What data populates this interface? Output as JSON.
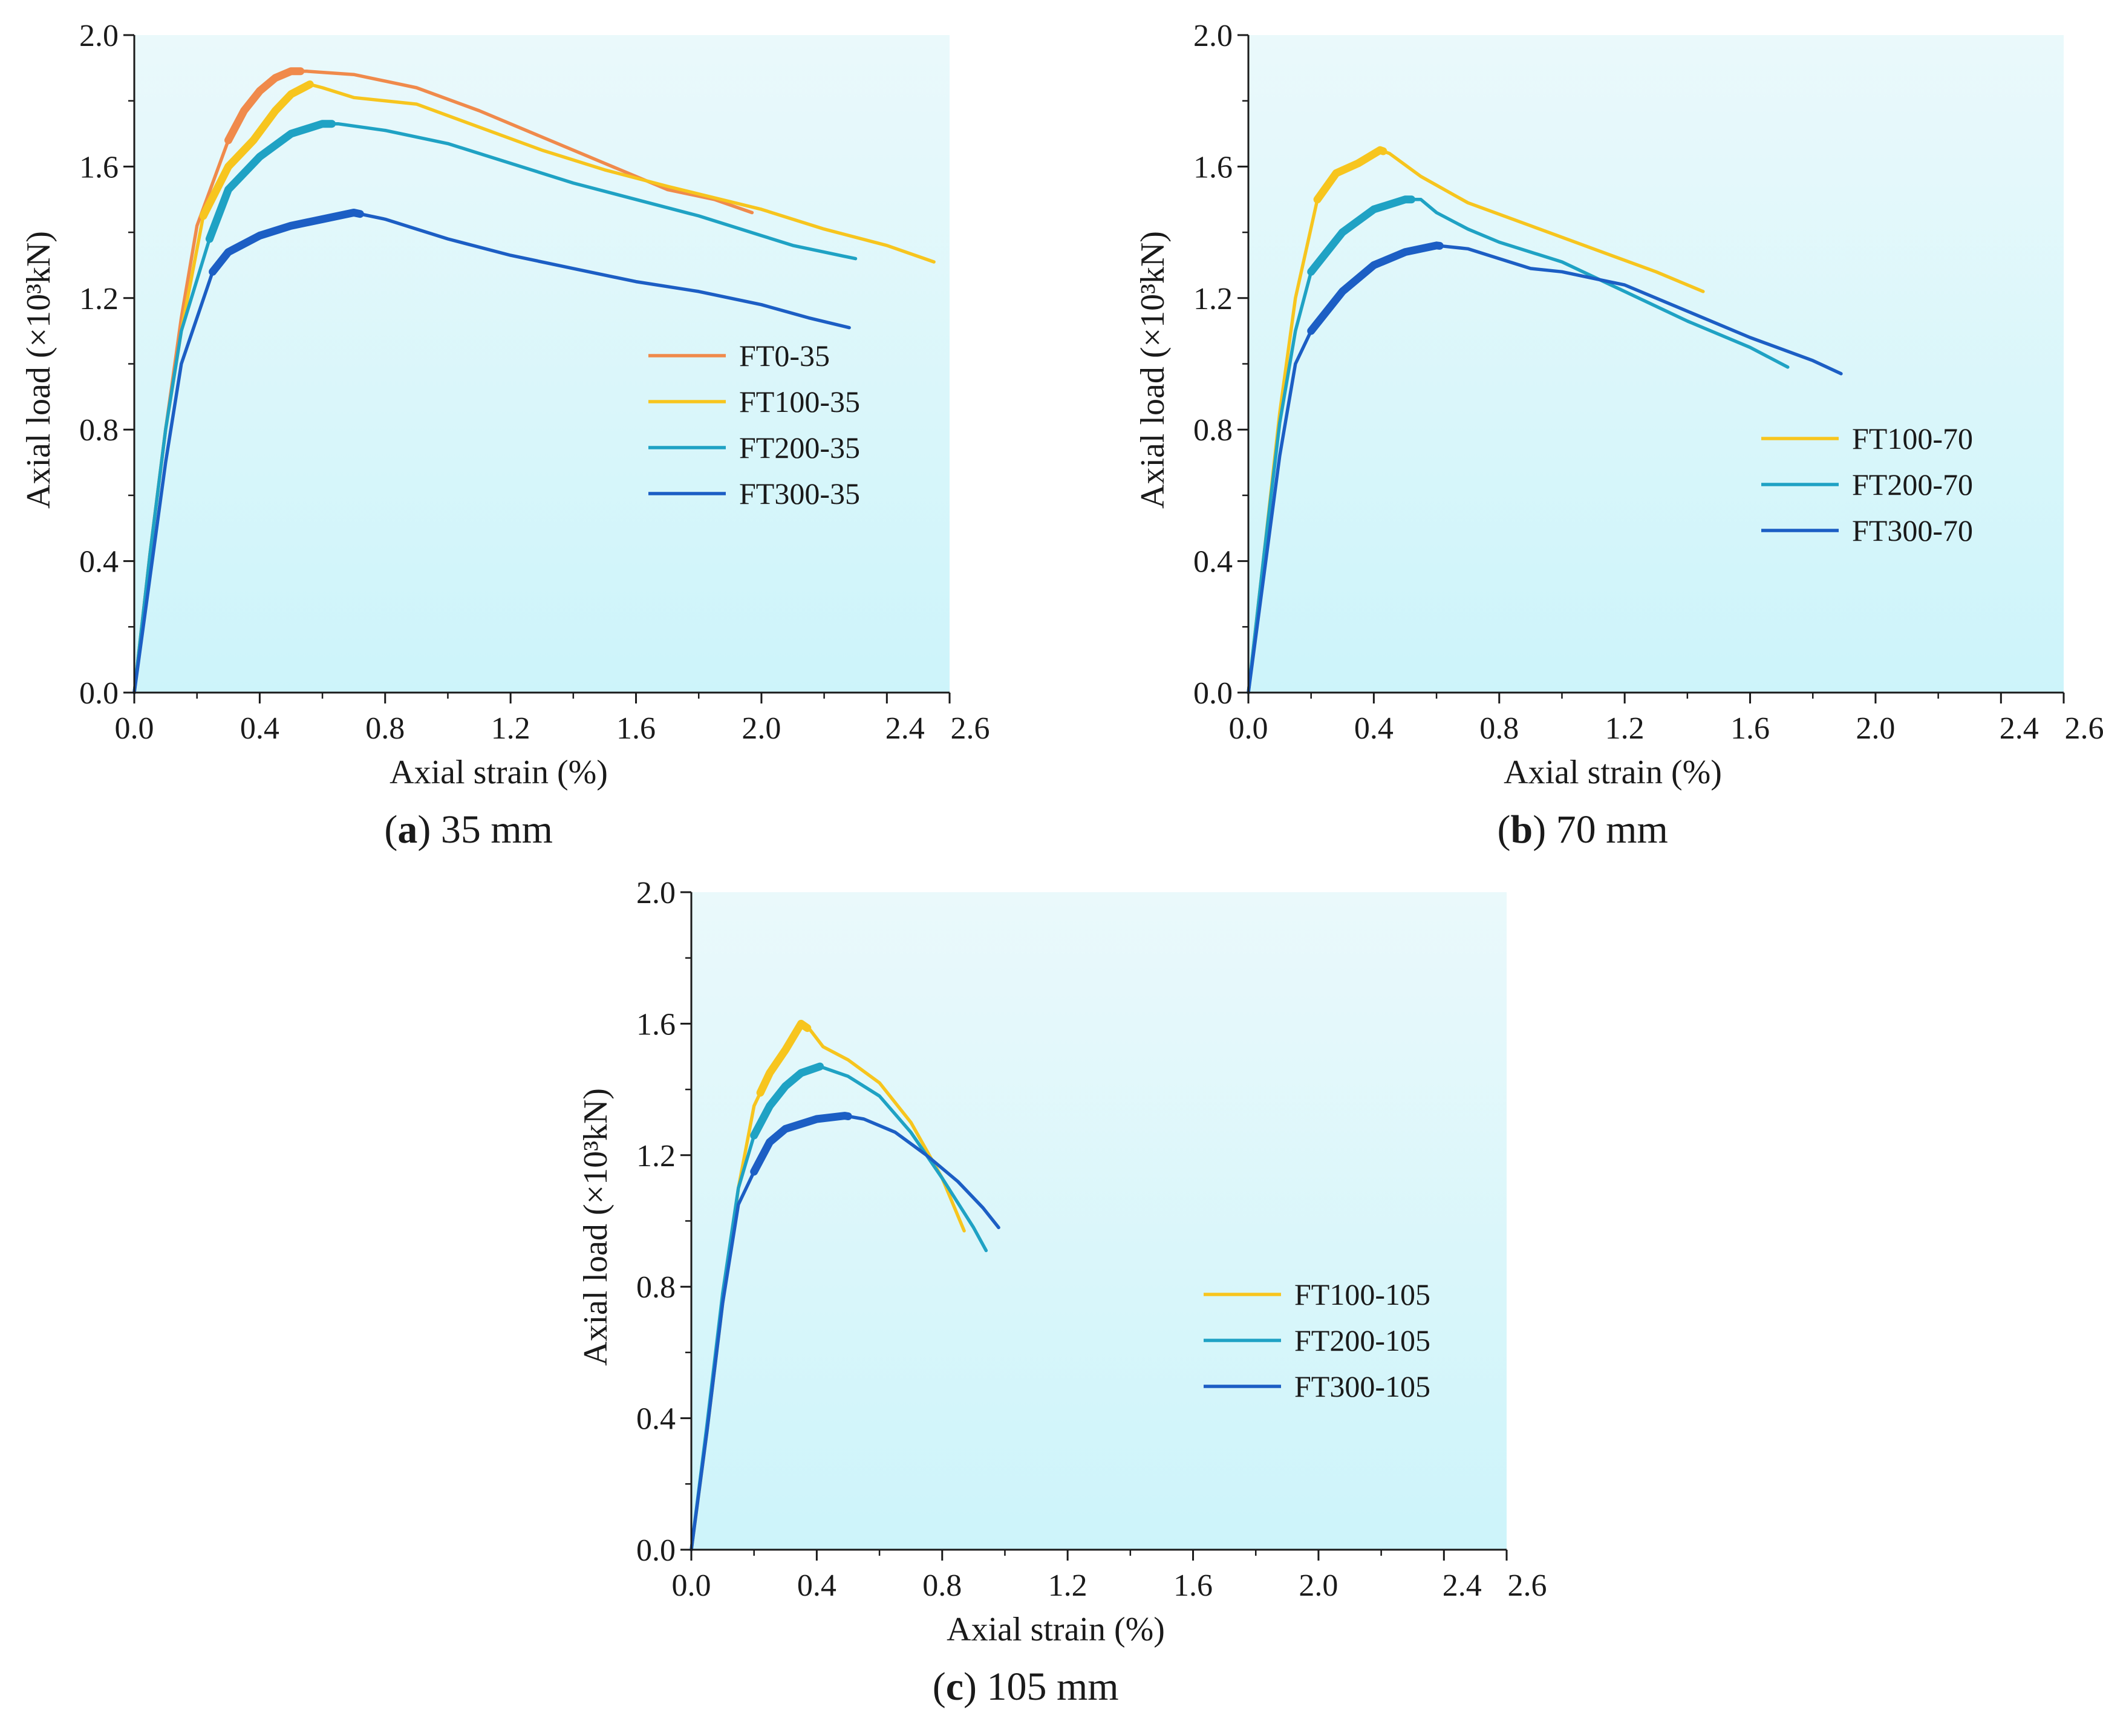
{
  "colors": {
    "FT0": "#f08a4b",
    "FT100": "#f7c51e",
    "FT200": "#1fa2c4",
    "FT300": "#1c5ec4",
    "plot_bg_top": "#eaf9fb",
    "plot_bg_bottom": "#cdf4fa"
  },
  "chart_data": [
    {
      "type": "line",
      "caption": {
        "letter": "a",
        "text": " 35 mm",
        "open": "(",
        "close": ")"
      },
      "xlabel": "Axial strain (%)",
      "ylabel": "Axial load (×10³kN)",
      "xlim": [
        0,
        2.6
      ],
      "ylim": [
        0,
        2.0
      ],
      "xticks": [
        "0.0",
        "0.4",
        "0.8",
        "1.2",
        "1.6",
        "2.0",
        "2.4",
        "2.6"
      ],
      "yticks": [
        "0.0",
        "0.4",
        "0.8",
        "1.2",
        "1.6",
        "2.0"
      ],
      "legend_position": "center-right",
      "series": [
        {
          "name": "FT0-35",
          "color_key": "FT0",
          "points": [
            [
              0,
              0
            ],
            [
              0.05,
              0.42
            ],
            [
              0.1,
              0.8
            ],
            [
              0.15,
              1.14
            ],
            [
              0.2,
              1.42
            ],
            [
              0.25,
              1.55
            ],
            [
              0.3,
              1.68
            ],
            [
              0.35,
              1.77
            ],
            [
              0.4,
              1.83
            ],
            [
              0.45,
              1.87
            ],
            [
              0.5,
              1.89
            ],
            [
              0.55,
              1.89
            ],
            [
              0.7,
              1.88
            ],
            [
              0.9,
              1.84
            ],
            [
              1.1,
              1.77
            ],
            [
              1.3,
              1.69
            ],
            [
              1.5,
              1.61
            ],
            [
              1.7,
              1.53
            ],
            [
              1.85,
              1.5
            ],
            [
              1.97,
              1.46
            ]
          ],
          "thick_x": [
            0.3,
            0.53
          ]
        },
        {
          "name": "FT100-35",
          "color_key": "FT100",
          "points": [
            [
              0,
              0
            ],
            [
              0.05,
              0.42
            ],
            [
              0.1,
              0.8
            ],
            [
              0.15,
              1.1
            ],
            [
              0.22,
              1.45
            ],
            [
              0.3,
              1.6
            ],
            [
              0.38,
              1.68
            ],
            [
              0.45,
              1.77
            ],
            [
              0.5,
              1.82
            ],
            [
              0.56,
              1.85
            ],
            [
              0.6,
              1.84
            ],
            [
              0.7,
              1.81
            ],
            [
              0.9,
              1.79
            ],
            [
              1.1,
              1.72
            ],
            [
              1.3,
              1.65
            ],
            [
              1.5,
              1.59
            ],
            [
              1.7,
              1.54
            ],
            [
              2.0,
              1.47
            ],
            [
              2.2,
              1.41
            ],
            [
              2.4,
              1.36
            ],
            [
              2.55,
              1.31
            ]
          ],
          "thick_x": [
            0.22,
            0.56
          ]
        },
        {
          "name": "FT200-35",
          "color_key": "FT200",
          "points": [
            [
              0,
              0
            ],
            [
              0.05,
              0.42
            ],
            [
              0.1,
              0.8
            ],
            [
              0.15,
              1.1
            ],
            [
              0.24,
              1.38
            ],
            [
              0.3,
              1.53
            ],
            [
              0.4,
              1.63
            ],
            [
              0.5,
              1.7
            ],
            [
              0.6,
              1.73
            ],
            [
              0.65,
              1.73
            ],
            [
              0.8,
              1.71
            ],
            [
              1.0,
              1.67
            ],
            [
              1.2,
              1.61
            ],
            [
              1.4,
              1.55
            ],
            [
              1.6,
              1.5
            ],
            [
              1.8,
              1.45
            ],
            [
              2.0,
              1.39
            ],
            [
              2.1,
              1.36
            ],
            [
              2.2,
              1.34
            ],
            [
              2.3,
              1.32
            ]
          ],
          "thick_x": [
            0.24,
            0.63
          ]
        },
        {
          "name": "FT300-35",
          "color_key": "FT300",
          "points": [
            [
              0,
              0
            ],
            [
              0.05,
              0.35
            ],
            [
              0.1,
              0.7
            ],
            [
              0.15,
              1.0
            ],
            [
              0.25,
              1.28
            ],
            [
              0.3,
              1.34
            ],
            [
              0.4,
              1.39
            ],
            [
              0.5,
              1.42
            ],
            [
              0.6,
              1.44
            ],
            [
              0.7,
              1.46
            ],
            [
              0.8,
              1.44
            ],
            [
              1.0,
              1.38
            ],
            [
              1.2,
              1.33
            ],
            [
              1.4,
              1.29
            ],
            [
              1.6,
              1.25
            ],
            [
              1.8,
              1.22
            ],
            [
              2.0,
              1.18
            ],
            [
              2.15,
              1.14
            ],
            [
              2.28,
              1.11
            ]
          ],
          "thick_x": [
            0.25,
            0.72
          ]
        }
      ]
    },
    {
      "type": "line",
      "caption": {
        "letter": "b",
        "text": " 70 mm",
        "open": "(",
        "close": ")"
      },
      "xlabel": "Axial strain (%)",
      "ylabel": "Axial load (×10³kN)",
      "xlim": [
        0,
        2.6
      ],
      "ylim": [
        0,
        2.0
      ],
      "xticks": [
        "0.0",
        "0.4",
        "0.8",
        "1.2",
        "1.6",
        "2.0",
        "2.4",
        "2.6"
      ],
      "yticks": [
        "0.0",
        "0.4",
        "0.8",
        "1.2",
        "1.6",
        "2.0"
      ],
      "legend_position": "center-right",
      "series": [
        {
          "name": "FT100-70",
          "color_key": "FT100",
          "points": [
            [
              0,
              0
            ],
            [
              0.05,
              0.42
            ],
            [
              0.1,
              0.85
            ],
            [
              0.15,
              1.2
            ],
            [
              0.22,
              1.5
            ],
            [
              0.28,
              1.58
            ],
            [
              0.35,
              1.61
            ],
            [
              0.42,
              1.65
            ],
            [
              0.45,
              1.64
            ],
            [
              0.55,
              1.57
            ],
            [
              0.7,
              1.49
            ],
            [
              0.9,
              1.42
            ],
            [
              1.1,
              1.35
            ],
            [
              1.3,
              1.28
            ],
            [
              1.45,
              1.22
            ]
          ],
          "thick_x": [
            0.22,
            0.43
          ]
        },
        {
          "name": "FT200-70",
          "color_key": "FT200",
          "points": [
            [
              0,
              0
            ],
            [
              0.05,
              0.42
            ],
            [
              0.1,
              0.82
            ],
            [
              0.15,
              1.1
            ],
            [
              0.2,
              1.28
            ],
            [
              0.3,
              1.4
            ],
            [
              0.4,
              1.47
            ],
            [
              0.5,
              1.5
            ],
            [
              0.55,
              1.5
            ],
            [
              0.6,
              1.46
            ],
            [
              0.7,
              1.41
            ],
            [
              0.8,
              1.37
            ],
            [
              1.0,
              1.31
            ],
            [
              1.2,
              1.22
            ],
            [
              1.4,
              1.13
            ],
            [
              1.6,
              1.05
            ],
            [
              1.72,
              0.99
            ]
          ],
          "thick_x": [
            0.2,
            0.52
          ]
        },
        {
          "name": "FT300-70",
          "color_key": "FT300",
          "points": [
            [
              0,
              0
            ],
            [
              0.05,
              0.36
            ],
            [
              0.1,
              0.72
            ],
            [
              0.15,
              1.0
            ],
            [
              0.2,
              1.1
            ],
            [
              0.3,
              1.22
            ],
            [
              0.4,
              1.3
            ],
            [
              0.5,
              1.34
            ],
            [
              0.6,
              1.36
            ],
            [
              0.7,
              1.35
            ],
            [
              0.8,
              1.32
            ],
            [
              0.9,
              1.29
            ],
            [
              1.0,
              1.28
            ],
            [
              1.2,
              1.24
            ],
            [
              1.4,
              1.16
            ],
            [
              1.6,
              1.08
            ],
            [
              1.8,
              1.01
            ],
            [
              1.89,
              0.97
            ]
          ],
          "thick_x": [
            0.2,
            0.61
          ]
        }
      ]
    },
    {
      "type": "line",
      "caption": {
        "letter": "c",
        "text": " 105 mm",
        "open": "(",
        "close": ")"
      },
      "xlabel": "Axial strain (%)",
      "ylabel": "Axial load (×10³kN)",
      "xlim": [
        0,
        2.6
      ],
      "ylim": [
        0,
        2.0
      ],
      "xticks": [
        "0.0",
        "0.4",
        "0.8",
        "1.2",
        "1.6",
        "2.0",
        "2.4",
        "2.6"
      ],
      "yticks": [
        "0.0",
        "0.4",
        "0.8",
        "1.2",
        "1.6",
        "2.0"
      ],
      "legend_position": "bottom-right",
      "series": [
        {
          "name": "FT100-105",
          "color_key": "FT100",
          "points": [
            [
              0,
              0
            ],
            [
              0.05,
              0.36
            ],
            [
              0.1,
              0.75
            ],
            [
              0.15,
              1.1
            ],
            [
              0.2,
              1.35
            ],
            [
              0.25,
              1.45
            ],
            [
              0.3,
              1.52
            ],
            [
              0.35,
              1.6
            ],
            [
              0.38,
              1.58
            ],
            [
              0.42,
              1.53
            ],
            [
              0.5,
              1.49
            ],
            [
              0.6,
              1.42
            ],
            [
              0.7,
              1.3
            ],
            [
              0.8,
              1.13
            ],
            [
              0.87,
              0.97
            ]
          ],
          "thick_x": [
            0.22,
            0.37
          ]
        },
        {
          "name": "FT200-105",
          "color_key": "FT200",
          "points": [
            [
              0,
              0
            ],
            [
              0.05,
              0.38
            ],
            [
              0.1,
              0.78
            ],
            [
              0.15,
              1.1
            ],
            [
              0.2,
              1.26
            ],
            [
              0.25,
              1.35
            ],
            [
              0.3,
              1.41
            ],
            [
              0.35,
              1.45
            ],
            [
              0.41,
              1.47
            ],
            [
              0.5,
              1.44
            ],
            [
              0.6,
              1.38
            ],
            [
              0.7,
              1.27
            ],
            [
              0.8,
              1.13
            ],
            [
              0.9,
              0.98
            ],
            [
              0.94,
              0.91
            ]
          ],
          "thick_x": [
            0.2,
            0.41
          ]
        },
        {
          "name": "FT300-105",
          "color_key": "FT300",
          "points": [
            [
              0,
              0
            ],
            [
              0.05,
              0.36
            ],
            [
              0.1,
              0.75
            ],
            [
              0.15,
              1.05
            ],
            [
              0.2,
              1.15
            ],
            [
              0.25,
              1.24
            ],
            [
              0.3,
              1.28
            ],
            [
              0.4,
              1.31
            ],
            [
              0.49,
              1.32
            ],
            [
              0.55,
              1.31
            ],
            [
              0.65,
              1.27
            ],
            [
              0.75,
              1.2
            ],
            [
              0.85,
              1.12
            ],
            [
              0.93,
              1.04
            ],
            [
              0.98,
              0.98
            ]
          ],
          "thick_x": [
            0.2,
            0.5
          ]
        }
      ]
    }
  ]
}
